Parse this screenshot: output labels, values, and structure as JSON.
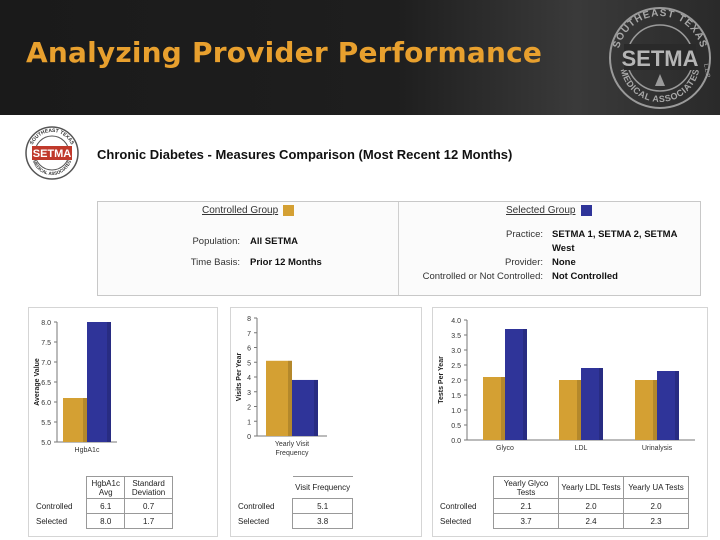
{
  "header": {
    "title": "Analyzing Provider Performance",
    "logo_text": {
      "top": "SOUTHEAST TEXAS",
      "mid": "SETMA",
      "bottom": "MEDICAL ASSOCIATES",
      "suffix": "L.L.P."
    }
  },
  "report": {
    "title": "Chronic Diabetes - Measures Comparison (Most Recent 12 Months)"
  },
  "filters": {
    "controlled_label": "Controlled Group",
    "selected_label": "Selected Group",
    "population_label": "Population:",
    "population_value": "All SETMA",
    "timebasis_label": "Time Basis:",
    "timebasis_value": "Prior 12 Months",
    "practice_label": "Practice:",
    "practice_value_1": "SETMA 1, SETMA 2, SETMA",
    "practice_value_2": "West",
    "provider_label": "Provider:",
    "provider_value": "None",
    "cnc_label": "Controlled or Not Controlled:",
    "cnc_value": "Not Controlled"
  },
  "colors": {
    "controlled": "#d4a033",
    "selected": "#2f3499",
    "title_orange": "#e8a02e"
  },
  "chart_data": [
    {
      "type": "bar",
      "categories": [
        "HgbA1c"
      ],
      "series": [
        {
          "name": "Controlled",
          "values": [
            6.1
          ]
        },
        {
          "name": "Selected",
          "values": [
            8.0
          ]
        }
      ],
      "ylabel": "Average Value",
      "ylim": [
        5.0,
        8.0
      ],
      "ticks": [
        "5.0",
        "5.5",
        "6.0",
        "6.5",
        "7.0",
        "7.5",
        "8.0"
      ]
    },
    {
      "type": "bar",
      "categories": [
        "Yearly Visit Frequency"
      ],
      "series": [
        {
          "name": "Controlled",
          "values": [
            5.1
          ]
        },
        {
          "name": "Selected",
          "values": [
            3.8
          ]
        }
      ],
      "ylabel": "Visits Per Year",
      "ylim": [
        0,
        8
      ],
      "ticks": [
        "0",
        "1",
        "2",
        "3",
        "4",
        "5",
        "6",
        "7",
        "8"
      ]
    },
    {
      "type": "bar",
      "categories": [
        "Glyco",
        "LDL",
        "Urinalysis"
      ],
      "series": [
        {
          "name": "Controlled",
          "values": [
            2.1,
            2.0,
            2.0
          ]
        },
        {
          "name": "Selected",
          "values": [
            3.7,
            2.4,
            2.3
          ]
        }
      ],
      "ylabel": "Tests Per Year",
      "ylim": [
        0,
        4.0
      ],
      "ticks": [
        "0.0",
        "0.5",
        "1.0",
        "1.5",
        "2.0",
        "2.5",
        "3.0",
        "3.5",
        "4.0"
      ]
    }
  ],
  "tables": {
    "t1": {
      "headers": [
        "HgbA1c Avg",
        "Standard Deviation"
      ],
      "rows": [
        {
          "label": "Controlled",
          "v1": "6.1",
          "v2": "0.7"
        },
        {
          "label": "Selected",
          "v1": "8.0",
          "v2": "1.7"
        }
      ]
    },
    "t2": {
      "headers": [
        "Visit Frequency"
      ],
      "rows": [
        {
          "label": "Controlled",
          "v1": "5.1"
        },
        {
          "label": "Selected",
          "v1": "3.8"
        }
      ]
    },
    "t3": {
      "headers": [
        "Yearly Glyco Tests",
        "Yearly LDL Tests",
        "Yearly UA Tests"
      ],
      "rows": [
        {
          "label": "Controlled",
          "v1": "2.1",
          "v2": "2.0",
          "v3": "2.0"
        },
        {
          "label": "Selected",
          "v1": "3.7",
          "v2": "2.4",
          "v3": "2.3"
        }
      ]
    }
  }
}
